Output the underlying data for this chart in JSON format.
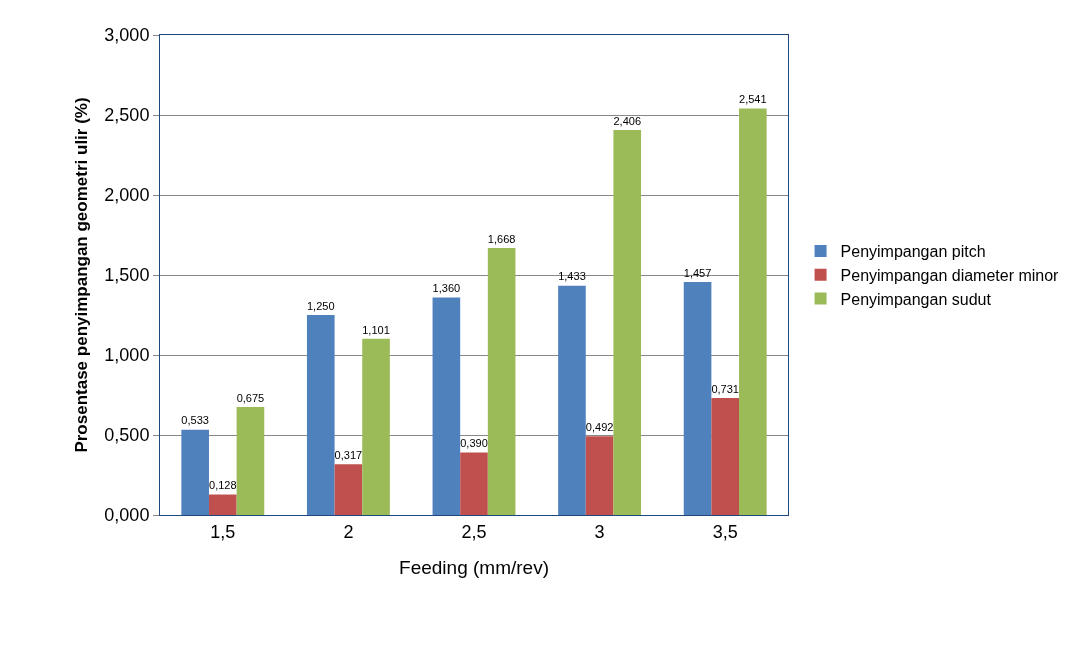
{
  "chart_data": {
    "type": "bar",
    "xlabel": "Feeding (mm/rev)",
    "ylabel": "Prosentase penyimpangan geometri ulir (%)",
    "categories": [
      "1,5",
      "2",
      "2,5",
      "3",
      "3,5"
    ],
    "series": [
      {
        "name": "Penyimpangan pitch",
        "color": "#4f81bd",
        "values": [
          0.533,
          1.25,
          1.36,
          1.433,
          1.457
        ],
        "value_labels": [
          "0,533",
          "1,250",
          "1,360",
          "1,433",
          "1,457"
        ]
      },
      {
        "name": "Penyimpangan diameter minor",
        "color": "#c0504d",
        "values": [
          0.128,
          0.317,
          0.39,
          0.492,
          0.731
        ],
        "value_labels": [
          "0,128",
          "0,317",
          "0,390",
          "0,492",
          "0,731"
        ]
      },
      {
        "name": "Penyimpangan sudut",
        "color": "#9bbb59",
        "values": [
          0.675,
          1.101,
          1.668,
          2.406,
          2.541
        ],
        "value_labels": [
          "0,675",
          "1,101",
          "1,668",
          "2,406",
          "2,541"
        ]
      }
    ],
    "ylim": [
      0,
      3
    ],
    "yticks": [
      {
        "value": 0,
        "label": "0,000"
      },
      {
        "value": 0.5,
        "label": "0,500"
      },
      {
        "value": 1,
        "label": "1,000"
      },
      {
        "value": 1.5,
        "label": "1,500"
      },
      {
        "value": 2,
        "label": "2,000"
      },
      {
        "value": 2.5,
        "label": "2,500"
      },
      {
        "value": 3,
        "label": "3,000"
      }
    ],
    "grid": "y",
    "legend": "right"
  }
}
